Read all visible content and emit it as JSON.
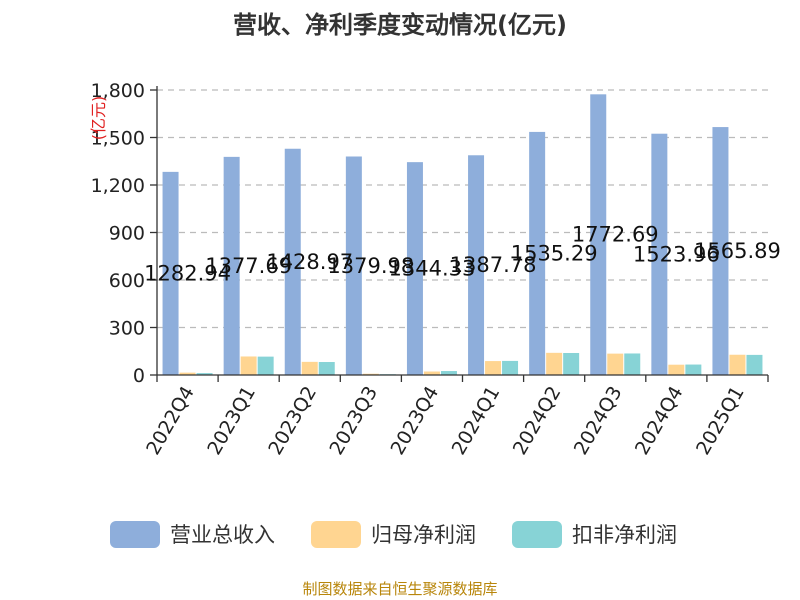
{
  "chart_data": {
    "type": "bar",
    "title": "营收、净利季度变动情况(亿元)",
    "ylabel": "(亿元)",
    "xlabel": "",
    "ylim": [
      0,
      1800
    ],
    "yticks": [
      0,
      300,
      600,
      900,
      1200,
      1500,
      1800
    ],
    "ytick_labels": [
      "0",
      "300",
      "600",
      "900",
      "1,200",
      "1,500",
      "1,800"
    ],
    "grid": true,
    "legend_position": "bottom",
    "categories": [
      "2022Q4",
      "2023Q1",
      "2023Q2",
      "2023Q3",
      "2023Q4",
      "2024Q1",
      "2024Q2",
      "2024Q3",
      "2024Q4",
      "2025Q1"
    ],
    "series": [
      {
        "name": "营业总收入",
        "color": "#8eaedb",
        "values": [
          1282.94,
          1377.69,
          1428.97,
          1379.98,
          1344.33,
          1387.78,
          1535.29,
          1772.69,
          1523.96,
          1565.89
        ],
        "labels": [
          "1282.94",
          "1377.69",
          "1428.97",
          "1379.98",
          "1344.33",
          "1387.78",
          "1535.29",
          "1772.69",
          "1523.96",
          "1565.89"
        ]
      },
      {
        "name": "归母净利润",
        "color": "#ffd591",
        "values": [
          15,
          117,
          83,
          8,
          22,
          88,
          140,
          135,
          65,
          128
        ]
      },
      {
        "name": "扣非净利润",
        "color": "#87d3d6",
        "values": [
          12,
          116,
          82,
          5,
          25,
          89,
          139,
          136,
          66,
          127
        ]
      }
    ],
    "source": "制图数据来自恒生聚源数据库"
  }
}
